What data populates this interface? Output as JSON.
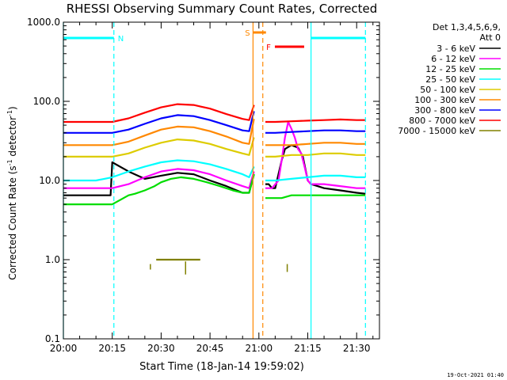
{
  "chart_data": {
    "type": "line",
    "title": "RHESSI Observing Summary Count Rates, Corrected",
    "xlabel": "Start Time (18-Jan-14 19:59:02)",
    "ylabel": "Corrected Count Rate (s⁻¹ detector⁻¹)",
    "ylabel_main": "Corrected Count Rate (s",
    "ylabel_sup1": "-1",
    "ylabel_mid": " detector",
    "ylabel_sup2": "-1",
    "ylabel_end": ")",
    "y_scale": "log",
    "ylim": [
      0.1,
      1000
    ],
    "x_range_minutes": [
      0,
      97
    ],
    "xticks": [
      {
        "label": "20:00",
        "min": 0
      },
      {
        "label": "20:15",
        "min": 15
      },
      {
        "label": "20:30",
        "min": 30
      },
      {
        "label": "20:45",
        "min": 45
      },
      {
        "label": "21:00",
        "min": 60
      },
      {
        "label": "21:15",
        "min": 75
      },
      {
        "label": "21:30",
        "min": 90
      }
    ],
    "yticks": [
      {
        "label": "0.1",
        "value": 0.1
      },
      {
        "label": "1.0",
        "value": 1
      },
      {
        "label": "10.0",
        "value": 10
      },
      {
        "label": "100.0",
        "value": 100
      },
      {
        "label": "1000.0",
        "value": 1000
      }
    ],
    "legend_title": "Det 1,3,4,5,6,9,",
    "legend_subtitle": "Att 0",
    "legend_position": "top-right, outside plot",
    "series": [
      {
        "name": "3 - 6 keV",
        "color": "#000000",
        "x": [
          0,
          5,
          10,
          14.5,
          15,
          20,
          25,
          30,
          35,
          40,
          45,
          50,
          55,
          57,
          58.5,
          61,
          62,
          63,
          64,
          65,
          67,
          68,
          70,
          72,
          73.5,
          75,
          76,
          78,
          80,
          85,
          90,
          92.7
        ],
        "y": [
          6.5,
          6.5,
          6.5,
          6.5,
          17,
          13,
          10.5,
          11.5,
          12.5,
          12,
          10,
          8.5,
          7,
          7,
          12,
          null,
          9,
          9,
          8,
          8,
          18,
          25,
          28,
          26,
          20,
          10,
          9,
          8.5,
          8,
          7.5,
          7,
          6.8
        ]
      },
      {
        "name": "6 - 12 keV",
        "color": "#ff00ff",
        "x": [
          0,
          5,
          10,
          15,
          20,
          25,
          30,
          35,
          40,
          45,
          50,
          55,
          57,
          58.5,
          61,
          62,
          64,
          66,
          67,
          68,
          69,
          70,
          71,
          72,
          73,
          74,
          75,
          76,
          80,
          85,
          90,
          92.7
        ],
        "y": [
          8,
          8,
          8,
          8,
          9,
          11,
          13,
          14,
          13.5,
          12,
          10,
          8.5,
          8,
          13,
          null,
          8,
          8,
          10,
          18,
          35,
          55,
          45,
          35,
          25,
          22,
          15,
          10,
          9,
          9,
          8.5,
          8,
          8
        ]
      },
      {
        "name": "12 - 25 keV",
        "color": "#00dd00",
        "x": [
          0,
          5,
          10,
          15,
          20,
          22,
          25,
          28,
          30,
          33,
          36,
          40,
          44,
          48,
          52,
          55,
          57,
          58.5,
          61,
          62,
          64,
          67,
          70,
          73,
          75,
          76,
          80,
          85,
          90,
          92.7
        ],
        "y": [
          5,
          5,
          5,
          5,
          6.5,
          6.8,
          7.5,
          8.5,
          9.5,
          10.5,
          11,
          10.5,
          9.5,
          8.5,
          7.5,
          7,
          7,
          12,
          null,
          6,
          6,
          6,
          6.5,
          6.5,
          6.5,
          6.5,
          6.5,
          6.5,
          6.5,
          6.5
        ]
      },
      {
        "name": "25 - 50 keV",
        "color": "#00ffff",
        "x": [
          0,
          5,
          10,
          15,
          20,
          25,
          30,
          35,
          40,
          45,
          50,
          55,
          57,
          58.5,
          61,
          62,
          65,
          70,
          75,
          80,
          85,
          90,
          92.7
        ],
        "y": [
          10,
          10,
          10,
          11,
          13,
          15,
          17,
          18,
          17.5,
          16,
          14,
          12,
          11,
          15,
          null,
          10,
          10,
          10.5,
          11,
          11.5,
          11.5,
          11,
          11
        ]
      },
      {
        "name": "50 - 100 keV",
        "color": "#ddcc00",
        "x": [
          0,
          5,
          10,
          15,
          20,
          25,
          30,
          35,
          40,
          45,
          50,
          55,
          57,
          58.5,
          61,
          62,
          65,
          70,
          75,
          80,
          85,
          90,
          92.7
        ],
        "y": [
          20,
          20,
          20,
          20,
          22,
          26,
          30,
          33,
          32,
          29,
          25,
          22,
          21,
          35,
          null,
          20,
          20,
          21,
          21,
          22,
          22,
          21,
          21
        ]
      },
      {
        "name": "100 - 300 keV",
        "color": "#ff8800",
        "x": [
          0,
          5,
          10,
          15,
          20,
          25,
          30,
          35,
          40,
          45,
          50,
          55,
          57,
          58.5,
          61,
          62,
          65,
          70,
          75,
          80,
          85,
          90,
          92.7
        ],
        "y": [
          28,
          28,
          28,
          28,
          31,
          37,
          44,
          48,
          47,
          42,
          36,
          30,
          29,
          60,
          null,
          28,
          28,
          28,
          29,
          30,
          30,
          29,
          29
        ]
      },
      {
        "name": "300 - 800 keV",
        "color": "#0000ff",
        "x": [
          0,
          5,
          10,
          15,
          20,
          25,
          30,
          35,
          40,
          45,
          50,
          55,
          57,
          58.5,
          61,
          62,
          65,
          70,
          75,
          80,
          85,
          90,
          92.7
        ],
        "y": [
          40,
          40,
          40,
          40,
          44,
          52,
          61,
          67,
          65,
          58,
          50,
          43,
          42,
          75,
          null,
          40,
          40,
          41,
          42,
          43,
          43,
          42,
          42
        ]
      },
      {
        "name": "800 - 7000 keV",
        "color": "#ff0000",
        "x": [
          0,
          5,
          10,
          15,
          20,
          25,
          30,
          35,
          40,
          45,
          50,
          55,
          57,
          58.5,
          61,
          62,
          65,
          70,
          75,
          80,
          85,
          90,
          92.7
        ],
        "y": [
          55,
          55,
          55,
          55,
          61,
          72,
          84,
          92,
          90,
          81,
          69,
          60,
          58,
          90,
          null,
          55,
          55,
          56,
          57,
          58,
          59,
          58,
          58
        ]
      },
      {
        "name": "7000 - 15000 keV",
        "color": "#808000",
        "x": [
          28.5,
          30,
          35,
          40,
          42
        ],
        "y": [
          1,
          1,
          1,
          1,
          1
        ]
      }
    ],
    "spikes_7000_15000_keV": [
      {
        "x": 26.7,
        "y_low": 0.75,
        "y_high": 0.88
      },
      {
        "x": 37.5,
        "y_low": 0.65,
        "y_high": 0.95
      },
      {
        "x": 68.7,
        "y_low": 0.7,
        "y_high": 0.88
      }
    ],
    "annotations": {
      "night_bars": [
        {
          "label": "N",
          "start": 0,
          "end": 15.5,
          "color": "#00ffff"
        },
        {
          "label": "",
          "start": 76,
          "end": 92.7,
          "color": "#00ffff"
        }
      ],
      "saa": {
        "label": "S",
        "start": 58.2,
        "end": 61.2,
        "color": "#ff8800"
      },
      "flare": {
        "label": "F",
        "start": 64.9,
        "end": 73.9,
        "color": "#ff0000"
      },
      "vertical_lines": [
        {
          "x": 0,
          "color": "#00ffff",
          "style": "solid"
        },
        {
          "x": 15.5,
          "color": "#00ffff",
          "style": "dashed"
        },
        {
          "x": 76,
          "color": "#00ffff",
          "style": "solid"
        },
        {
          "x": 92.7,
          "color": "#00ffff",
          "style": "dashed"
        },
        {
          "x": 58.2,
          "color": "#ff8800",
          "style": "solid"
        },
        {
          "x": 61.2,
          "color": "#ff8800",
          "style": "dashed"
        }
      ]
    },
    "grid": false
  },
  "footer": {
    "date_stamp": "19-Oct-2021 01:40"
  }
}
